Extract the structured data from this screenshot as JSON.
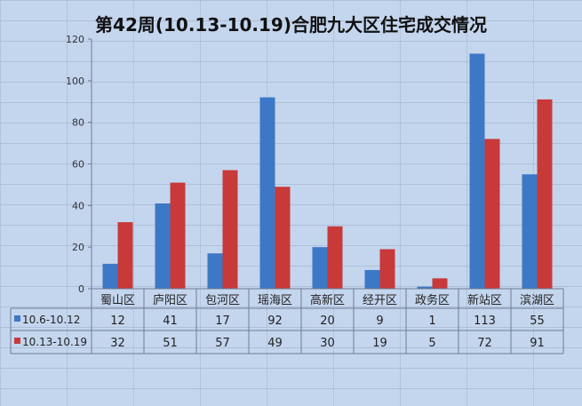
{
  "chart_data": {
    "type": "bar",
    "title": "第42周(10.13-10.19)合肥九大区住宅成交情况",
    "categories": [
      "蜀山区",
      "庐阳区",
      "包河区",
      "瑶海区",
      "高新区",
      "经开区",
      "政务区",
      "新站区",
      "滨湖区"
    ],
    "series": [
      {
        "name": "10.6-10.12",
        "color": "#3d78c6",
        "values": [
          12,
          41,
          17,
          92,
          20,
          9,
          1,
          113,
          55
        ]
      },
      {
        "name": "10.13-10.19",
        "color": "#c8393a",
        "values": [
          32,
          51,
          57,
          49,
          30,
          19,
          5,
          72,
          91
        ]
      }
    ],
    "ylim": [
      0,
      120
    ],
    "yticks": [
      0,
      20,
      40,
      60,
      80,
      100,
      120
    ],
    "grid": false,
    "legend": "data-table"
  }
}
